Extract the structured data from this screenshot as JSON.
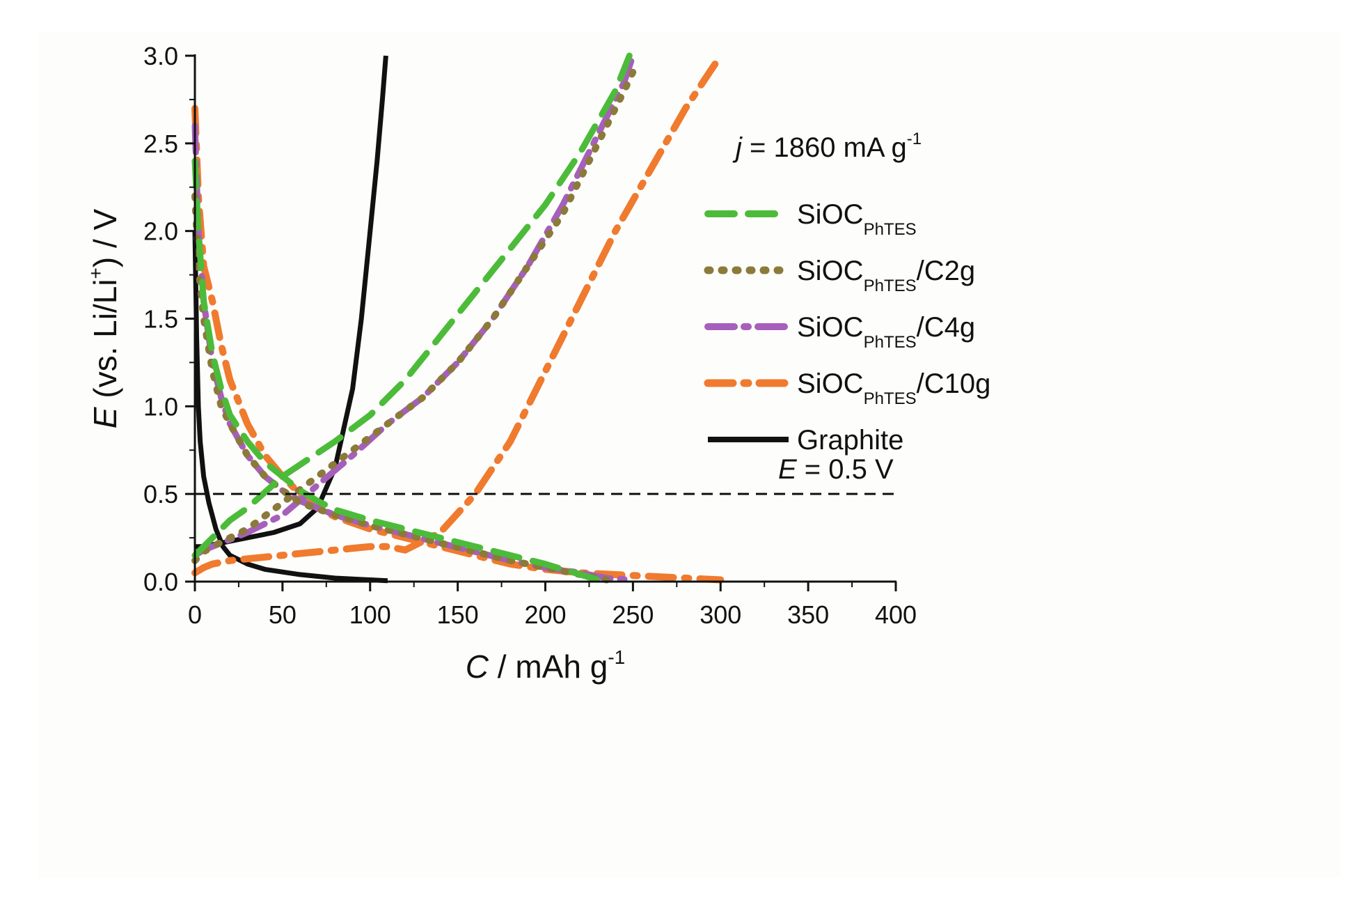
{
  "chart_data": {
    "type": "line",
    "title": "",
    "xlabel": {
      "italic": "C",
      "rest": " / mAh g",
      "sup": "-1"
    },
    "ylabel": {
      "italic": "E",
      "pre": " (vs. Li/Li",
      "sup": "+",
      "post": ")  / V"
    },
    "xlim": [
      0,
      400
    ],
    "ylim": [
      0.0,
      3.0
    ],
    "x_ticks": [
      0,
      50,
      100,
      150,
      200,
      250,
      300,
      350,
      400
    ],
    "x_tick_labels": [
      "0",
      "50",
      "100",
      "150",
      "200",
      "250",
      "300",
      "350",
      "400"
    ],
    "y_ticks": [
      0.0,
      0.5,
      1.0,
      1.5,
      2.0,
      2.5,
      3.0
    ],
    "y_tick_labels": [
      "0.0",
      "0.5",
      "1.0",
      "1.5",
      "2.0",
      "2.5",
      "3.0"
    ],
    "grid": false,
    "legend_position": "right",
    "current_annotation": {
      "italic": "j",
      "rest": " = 1860 mA g",
      "sup": "-1"
    },
    "reference_line": {
      "y": 0.5,
      "label_italic": "E",
      "label_rest": " = 0.5 V",
      "style": "dashed",
      "color": "#111111"
    },
    "series": [
      {
        "name": "SiOC_PhTES",
        "legend": {
          "main": "SiOC",
          "sub": "PhTES",
          "suffix": ""
        },
        "color": "#4cbb3a",
        "dash": "38 20",
        "width": 9,
        "discharge": {
          "x": [
            0,
            2,
            5,
            10,
            15,
            20,
            30,
            40,
            50,
            60,
            70,
            80,
            100,
            120,
            140,
            160,
            180,
            200,
            210,
            220,
            230
          ],
          "y": [
            2.4,
            2.0,
            1.6,
            1.3,
            1.1,
            0.95,
            0.8,
            0.68,
            0.6,
            0.52,
            0.46,
            0.41,
            0.35,
            0.3,
            0.25,
            0.2,
            0.15,
            0.1,
            0.07,
            0.04,
            0.01
          ]
        },
        "charge": {
          "x": [
            0,
            5,
            10,
            20,
            30,
            50,
            80,
            100,
            120,
            140,
            160,
            180,
            200,
            220,
            240,
            248
          ],
          "y": [
            0.15,
            0.2,
            0.25,
            0.35,
            0.42,
            0.6,
            0.8,
            0.95,
            1.15,
            1.4,
            1.65,
            1.9,
            2.15,
            2.45,
            2.8,
            3.0
          ]
        }
      },
      {
        "name": "SiOC_PhTES/C2g",
        "legend": {
          "main": "SiOC",
          "sub": "PhTES",
          "suffix": "/C2g"
        },
        "color": "#8b7a3a",
        "dash": "3 17",
        "width": 10,
        "discharge": {
          "x": [
            0,
            2,
            5,
            10,
            15,
            20,
            30,
            40,
            50,
            60,
            80,
            100,
            120,
            140,
            160,
            180,
            200,
            220,
            235
          ],
          "y": [
            2.2,
            1.8,
            1.5,
            1.2,
            1.0,
            0.9,
            0.72,
            0.6,
            0.52,
            0.45,
            0.38,
            0.32,
            0.27,
            0.22,
            0.17,
            0.12,
            0.08,
            0.04,
            0.01
          ]
        },
        "charge": {
          "x": [
            0,
            5,
            10,
            20,
            30,
            50,
            70,
            90,
            110,
            130,
            150,
            170,
            190,
            210,
            230,
            245,
            252
          ],
          "y": [
            0.12,
            0.17,
            0.2,
            0.25,
            0.3,
            0.45,
            0.6,
            0.75,
            0.9,
            1.05,
            1.25,
            1.5,
            1.8,
            2.1,
            2.5,
            2.8,
            2.95
          ]
        }
      },
      {
        "name": "SiOC_PhTES/C4g",
        "legend": {
          "main": "SiOC",
          "sub": "PhTES",
          "suffix": "/C4g"
        },
        "color": "#a65fbb",
        "dash": "38 14 6 14",
        "width": 9,
        "discharge": {
          "x": [
            0,
            2,
            5,
            10,
            15,
            20,
            30,
            40,
            50,
            60,
            80,
            100,
            120,
            140,
            160,
            180,
            200,
            220,
            235,
            250
          ],
          "y": [
            2.6,
            2.0,
            1.6,
            1.25,
            1.05,
            0.9,
            0.72,
            0.6,
            0.52,
            0.46,
            0.38,
            0.32,
            0.27,
            0.22,
            0.17,
            0.12,
            0.08,
            0.05,
            0.02,
            0.01
          ]
        },
        "charge": {
          "x": [
            0,
            5,
            10,
            20,
            30,
            50,
            70,
            90,
            110,
            130,
            150,
            170,
            190,
            210,
            230,
            245,
            250
          ],
          "y": [
            0.15,
            0.18,
            0.2,
            0.24,
            0.28,
            0.38,
            0.55,
            0.72,
            0.9,
            1.05,
            1.25,
            1.5,
            1.8,
            2.15,
            2.55,
            2.85,
            3.0
          ]
        }
      },
      {
        "name": "SiOC_PhTES/C10g",
        "legend": {
          "main": "SiOC",
          "sub": "PhTES",
          "suffix": "/C10g"
        },
        "color": "#f07a2e",
        "dash": "36 16 6 16",
        "width": 10,
        "discharge": {
          "x": [
            0,
            2,
            5,
            10,
            15,
            20,
            30,
            40,
            50,
            60,
            70,
            80,
            100,
            140,
            160,
            180,
            200,
            220,
            260,
            300
          ],
          "y": [
            2.7,
            2.2,
            1.8,
            1.6,
            1.35,
            1.15,
            0.9,
            0.72,
            0.6,
            0.5,
            0.42,
            0.37,
            0.3,
            0.2,
            0.15,
            0.1,
            0.07,
            0.05,
            0.03,
            0.01
          ]
        },
        "charge": {
          "x": [
            0,
            5,
            10,
            20,
            40,
            60,
            80,
            100,
            110,
            120,
            140,
            160,
            180,
            200,
            220,
            240,
            260,
            280,
            300
          ],
          "y": [
            0.05,
            0.08,
            0.1,
            0.12,
            0.14,
            0.16,
            0.18,
            0.2,
            0.2,
            0.18,
            0.28,
            0.5,
            0.8,
            1.2,
            1.6,
            2.0,
            2.35,
            2.7,
            3.0
          ]
        }
      },
      {
        "name": "Graphite",
        "legend": {
          "main": "Graphite",
          "sub": "",
          "suffix": ""
        },
        "color": "#111111",
        "dash": "",
        "width": 7,
        "discharge": {
          "x": [
            0,
            1,
            2,
            3,
            5,
            8,
            12,
            16,
            20,
            30,
            40,
            60,
            80,
            100,
            110
          ],
          "y": [
            2.0,
            1.4,
            1.0,
            0.8,
            0.6,
            0.45,
            0.3,
            0.2,
            0.15,
            0.1,
            0.07,
            0.04,
            0.02,
            0.01,
            0.005
          ]
        },
        "charge": {
          "x": [
            0,
            5,
            15,
            30,
            45,
            60,
            70,
            80,
            90,
            95,
            100,
            104,
            107,
            109
          ],
          "y": [
            0.2,
            0.2,
            0.22,
            0.25,
            0.28,
            0.33,
            0.42,
            0.65,
            1.1,
            1.5,
            2.0,
            2.4,
            2.75,
            3.0
          ]
        }
      }
    ]
  }
}
